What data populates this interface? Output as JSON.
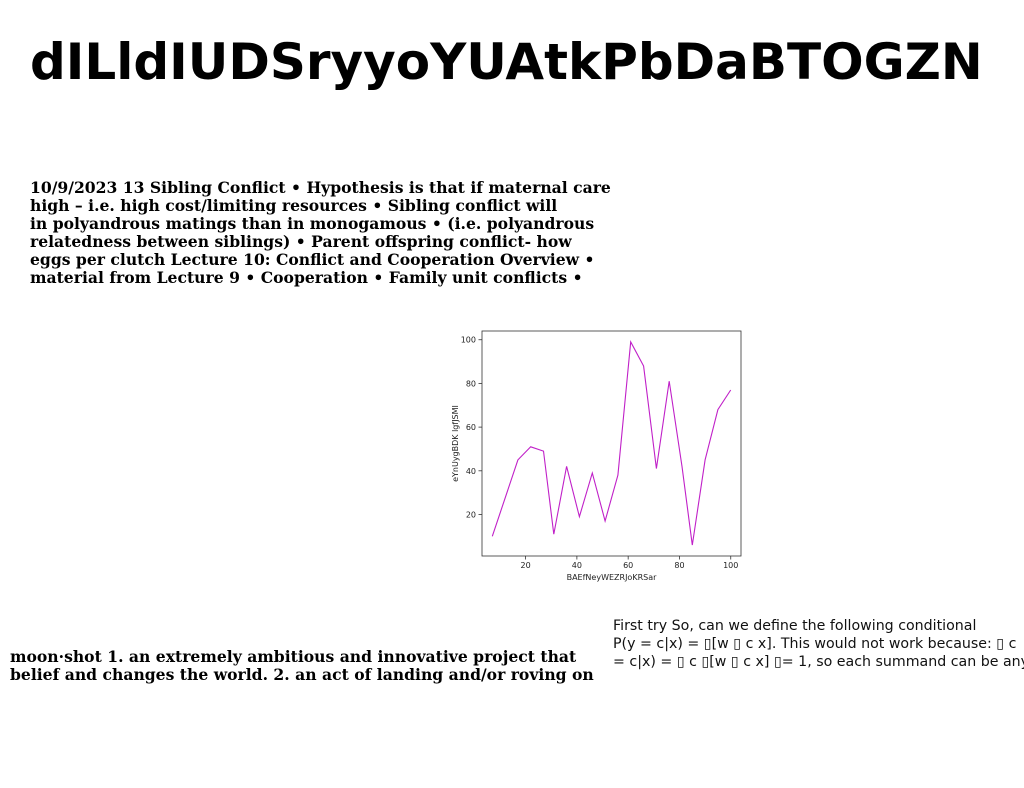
{
  "page": {
    "title": "dILldIUDSryyoYUAtkPbDaBTOGZN"
  },
  "paragraph_1": {
    "lines": [
      "10/9/2023 13 Sibling Conflict • Hypothesis is that if maternal care",
      "high – i.e. high cost/limiting resources • Sibling conflict will",
      "in polyandrous matings than in monogamous • (i.e. polyandrous",
      "relatedness between siblings) • Parent offspring conflict- how",
      "eggs per clutch Lecture 10: Conflict and Cooperation Overview •",
      "material from Lecture 9 • Cooperation • Family unit conflicts •"
    ]
  },
  "paragraph_2": {
    "lines": [
      "moon·shot 1. an extremely ambitious and innovative project that",
      "belief and changes the world. 2. an act of landing and/or roving on"
    ]
  },
  "paragraph_3": {
    "lines": [
      "First try So, can we define the following conditional",
      "P(y = c|x) = ▯[w ▯ c x]. This would not work because: ▯ c",
      "= c|x) = ▯ c ▯[w ▯ c x] ▯= 1, so each summand can be any"
    ]
  },
  "chart_data": {
    "type": "line",
    "xlabel": "BAEfNeyWEZRJoKRSar",
    "ylabel": "eYnUygBDK lgfJSMI",
    "xlim": [
      3,
      104
    ],
    "ylim": [
      1,
      104
    ],
    "xticks": [
      20,
      40,
      60,
      80,
      100
    ],
    "yticks": [
      20,
      40,
      60,
      80,
      100
    ],
    "grid": false,
    "color": "#c020c8",
    "x": [
      7,
      17,
      22,
      27,
      31,
      36,
      41,
      46,
      51,
      56,
      61,
      66,
      71,
      76,
      81,
      85,
      90,
      95,
      100
    ],
    "y": [
      10,
      45,
      51,
      49,
      11,
      42,
      19,
      39,
      17,
      38,
      99,
      88,
      41,
      81,
      42,
      6,
      45,
      68,
      77
    ]
  }
}
